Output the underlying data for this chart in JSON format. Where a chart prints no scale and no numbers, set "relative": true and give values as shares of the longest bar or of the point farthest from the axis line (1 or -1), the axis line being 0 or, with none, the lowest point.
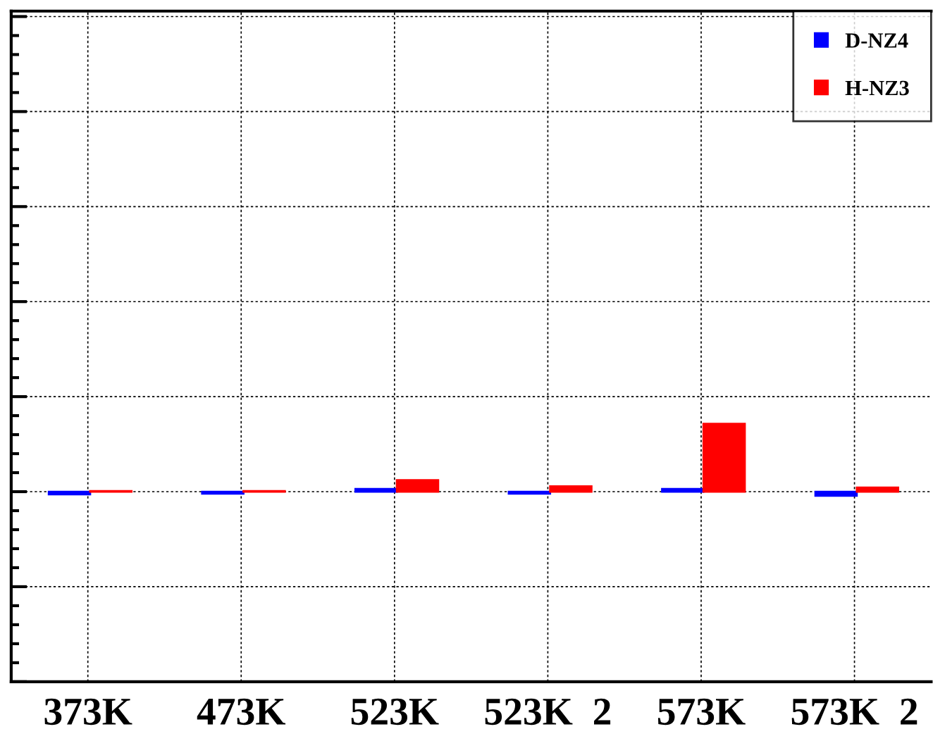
{
  "chart_data": {
    "type": "bar",
    "relative": true,
    "categories": [
      "373K",
      "473K",
      "523K",
      "523K  2",
      "573K",
      "573K  2"
    ],
    "series": [
      {
        "name": "D-NZ4",
        "color": "#0000ff",
        "values": [
          -0.04,
          -0.03,
          0.04,
          -0.03,
          0.04,
          -0.06
        ]
      },
      {
        "name": "H-NZ3",
        "color": "#ff0000",
        "values": [
          0.01,
          0.01,
          0.17,
          0.08,
          1,
          0.06
        ]
      }
    ],
    "grid": true,
    "legend": "top right"
  }
}
